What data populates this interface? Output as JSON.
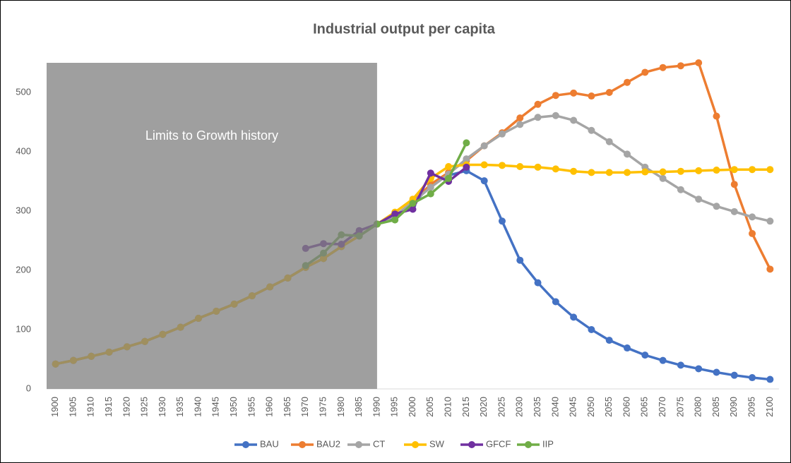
{
  "chart_data": {
    "type": "line",
    "title": "Industrial output per capita",
    "categories": [
      "1900",
      "1905",
      "1910",
      "1915",
      "1920",
      "1925",
      "1930",
      "1935",
      "1940",
      "1945",
      "1950",
      "1955",
      "1960",
      "1965",
      "1970",
      "1975",
      "1980",
      "1985",
      "1990",
      "1995",
      "2000",
      "2005",
      "2010",
      "2015",
      "2020",
      "2025",
      "2030",
      "2035",
      "2040",
      "2045",
      "2050",
      "2055",
      "2060",
      "2065",
      "2070",
      "2075",
      "2080",
      "2085",
      "2090",
      "2095",
      "2100"
    ],
    "series": [
      {
        "name": "BAU",
        "color": "#4472c4",
        "values": [
          42,
          48,
          55,
          62,
          71,
          80,
          92,
          104,
          119,
          131,
          143,
          157,
          172,
          187,
          205,
          220,
          240,
          258,
          278,
          290,
          310,
          345,
          360,
          368,
          351,
          283,
          217,
          179,
          147,
          121,
          100,
          82,
          69,
          57,
          48,
          40,
          34,
          28,
          23,
          19,
          16
        ]
      },
      {
        "name": "BAU2",
        "color": "#ed7d31",
        "values": [
          42,
          48,
          55,
          62,
          71,
          80,
          92,
          104,
          119,
          131,
          143,
          157,
          172,
          187,
          205,
          220,
          240,
          258,
          278,
          292,
          315,
          345,
          365,
          385,
          410,
          432,
          457,
          480,
          495,
          499,
          494,
          500,
          517,
          534,
          542,
          545,
          550,
          460,
          345,
          262,
          202
        ]
      },
      {
        "name": "CT",
        "color": "#a5a5a5",
        "values": [
          42,
          48,
          55,
          62,
          71,
          80,
          92,
          104,
          119,
          131,
          143,
          157,
          172,
          187,
          205,
          220,
          240,
          258,
          278,
          292,
          315,
          340,
          362,
          388,
          410,
          430,
          446,
          458,
          461,
          453,
          436,
          417,
          396,
          374,
          355,
          336,
          320,
          308,
          299,
          290,
          283
        ]
      },
      {
        "name": "SW",
        "color": "#ffc000",
        "values": [
          42,
          48,
          55,
          62,
          71,
          80,
          92,
          104,
          119,
          131,
          143,
          157,
          172,
          187,
          205,
          220,
          240,
          258,
          278,
          298,
          320,
          355,
          375,
          378,
          378,
          377,
          375,
          374,
          371,
          367,
          365,
          365,
          365,
          366,
          366,
          367,
          368,
          369,
          370,
          370,
          370
        ]
      },
      {
        "name": "GFCF",
        "color": "#7030a0",
        "values": [
          null,
          null,
          null,
          null,
          null,
          null,
          null,
          null,
          null,
          null,
          null,
          null,
          null,
          null,
          237,
          245,
          244,
          267,
          278,
          295,
          303,
          364,
          350,
          374,
          null,
          null,
          null,
          null,
          null,
          null,
          null,
          null,
          null,
          null,
          null,
          null,
          null,
          null,
          null,
          null,
          null
        ]
      },
      {
        "name": "IIP",
        "color": "#70ad47",
        "values": [
          null,
          null,
          null,
          null,
          null,
          null,
          null,
          null,
          null,
          null,
          null,
          null,
          null,
          null,
          208,
          229,
          260,
          258,
          278,
          285,
          313,
          329,
          355,
          415,
          null,
          null,
          null,
          null,
          null,
          null,
          null,
          null,
          null,
          null,
          null,
          null,
          null,
          null,
          null,
          null,
          null
        ]
      }
    ],
    "ylim": [
      0,
      550
    ],
    "yticks": [
      0,
      100,
      200,
      300,
      400,
      500
    ],
    "grid": false,
    "legend": "bottom",
    "shaded_region": {
      "text": "Limits to Growth history",
      "end": "1990"
    }
  }
}
